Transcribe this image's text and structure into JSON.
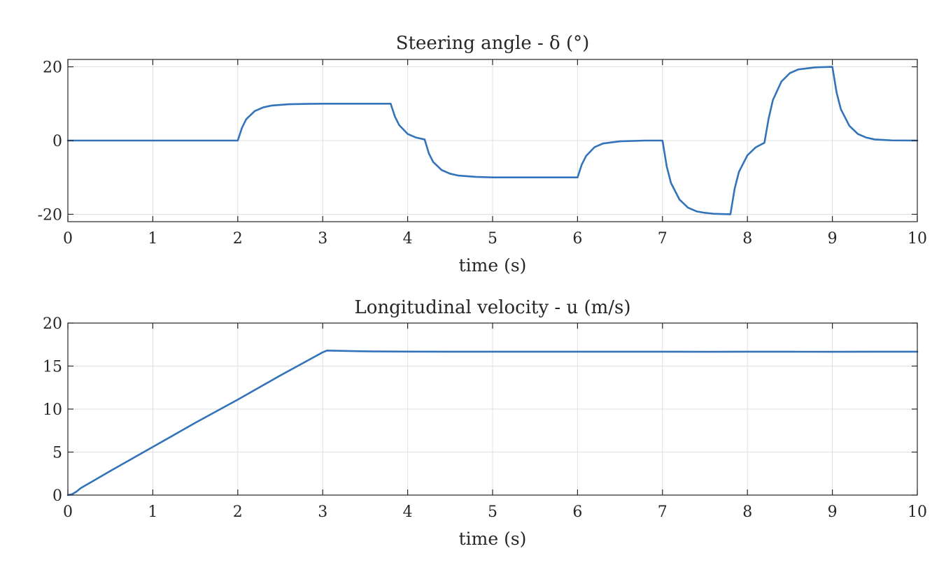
{
  "colors": {
    "series": "#3373b9",
    "axis": "#262626",
    "grid": "#dfdfdf",
    "background": "#ffffff"
  },
  "chart_data": [
    {
      "type": "line",
      "title": "Steering angle - δ (°)",
      "xlabel": "time (s)",
      "ylabel": "",
      "xlim": [
        0,
        10
      ],
      "ylim": [
        -22,
        22
      ],
      "xticks": [
        0,
        1,
        2,
        3,
        4,
        5,
        6,
        7,
        8,
        9,
        10
      ],
      "yticks": [
        -20,
        0,
        20
      ],
      "xtick_labels": [
        "0",
        "1",
        "2",
        "3",
        "4",
        "5",
        "6",
        "7",
        "8",
        "9",
        "10"
      ],
      "ytick_labels": [
        "-20",
        "0",
        "20"
      ],
      "grid": true,
      "series": [
        {
          "color": "#3373b9",
          "x": [
            0,
            1.0,
            2.0,
            2.05,
            2.1,
            2.2,
            2.3,
            2.4,
            2.6,
            2.8,
            3.0,
            3.5,
            3.8,
            3.85,
            3.9,
            4.0,
            4.1,
            4.2,
            4.25,
            4.3,
            4.4,
            4.5,
            4.6,
            4.8,
            5.0,
            5.5,
            6.0,
            6.05,
            6.1,
            6.2,
            6.3,
            6.5,
            6.8,
            7.0,
            7.05,
            7.1,
            7.2,
            7.3,
            7.4,
            7.5,
            7.6,
            7.8,
            7.85,
            7.9,
            8.0,
            8.1,
            8.2,
            8.25,
            8.3,
            8.4,
            8.5,
            8.6,
            8.8,
            9.0,
            9.05,
            9.1,
            9.2,
            9.3,
            9.4,
            9.5,
            9.7,
            10.0
          ],
          "y": [
            0,
            0,
            0,
            3.5,
            5.8,
            8.0,
            9.0,
            9.5,
            9.85,
            9.95,
            10.0,
            10.0,
            10.0,
            6.5,
            4.2,
            1.8,
            0.8,
            0.3,
            -3.5,
            -5.8,
            -8.0,
            -9.0,
            -9.5,
            -9.85,
            -10.0,
            -10.0,
            -10.0,
            -6.5,
            -4.2,
            -1.8,
            -0.8,
            -0.2,
            0,
            0,
            -7.0,
            -11.5,
            -16.0,
            -18.2,
            -19.2,
            -19.6,
            -19.85,
            -20.0,
            -13.0,
            -8.5,
            -4.0,
            -1.8,
            -0.6,
            6.0,
            11.0,
            16.0,
            18.3,
            19.3,
            19.85,
            20.0,
            13.0,
            8.5,
            4.0,
            1.8,
            0.8,
            0.3,
            0.05,
            0
          ]
        }
      ]
    },
    {
      "type": "line",
      "title": "Longitudinal velocity - u (m/s)",
      "xlabel": "time (s)",
      "ylabel": "",
      "xlim": [
        0,
        10
      ],
      "ylim": [
        0,
        20
      ],
      "xticks": [
        0,
        1,
        2,
        3,
        4,
        5,
        6,
        7,
        8,
        9,
        10
      ],
      "yticks": [
        0,
        5,
        10,
        15,
        20
      ],
      "xtick_labels": [
        "0",
        "1",
        "2",
        "3",
        "4",
        "5",
        "6",
        "7",
        "8",
        "9",
        "10"
      ],
      "ytick_labels": [
        "0",
        "5",
        "10",
        "15",
        "20"
      ],
      "grid": true,
      "series": [
        {
          "color": "#3373b9",
          "x": [
            0,
            0.05,
            0.1,
            0.15,
            0.5,
            1.0,
            1.5,
            2.0,
            2.5,
            3.0,
            3.05,
            3.3,
            3.6,
            4.0,
            5.0,
            6.0,
            7.0,
            7.5,
            8.0,
            8.5,
            9.0,
            9.5,
            10.0
          ],
          "y": [
            0,
            0.1,
            0.4,
            0.8,
            2.8,
            5.6,
            8.4,
            11.1,
            13.9,
            16.6,
            16.8,
            16.75,
            16.7,
            16.68,
            16.67,
            16.67,
            16.67,
            16.66,
            16.67,
            16.67,
            16.66,
            16.67,
            16.67
          ]
        }
      ]
    }
  ]
}
